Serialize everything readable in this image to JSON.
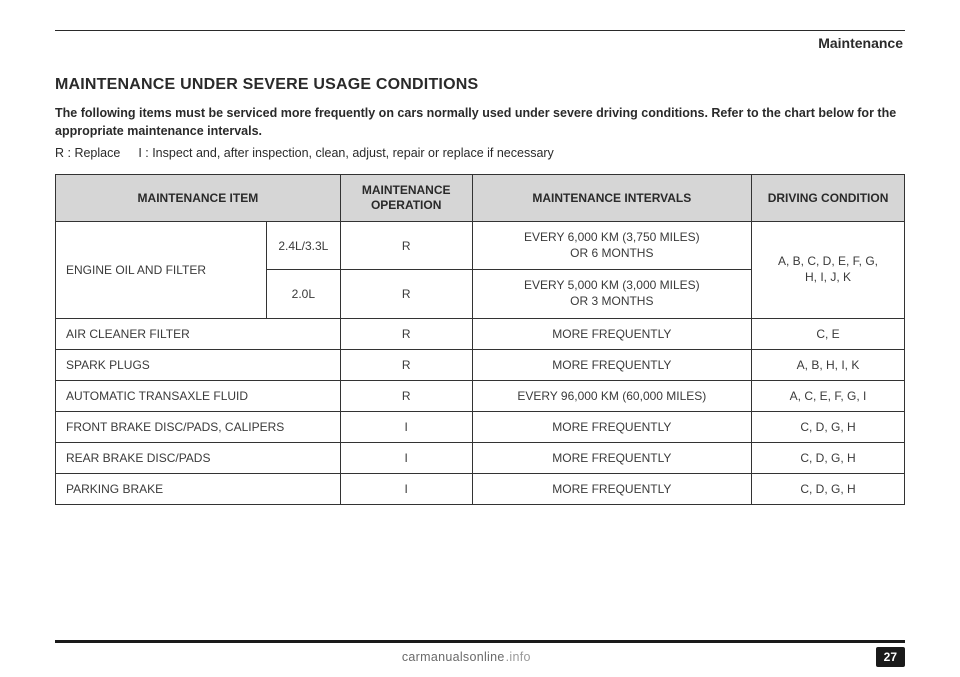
{
  "section": "Maintenance",
  "heading": "MAINTENANCE UNDER SEVERE USAGE CONDITIONS",
  "intro": "The following items must be serviced more frequently on cars normally used under severe driving conditions. Refer to the chart below for the appropriate maintenance intervals.",
  "legend_r": "R : Replace",
  "legend_i": "I : Inspect and, after inspection, clean, adjust, repair or replace if necessary",
  "table": {
    "headers": {
      "item": "MAINTENANCE ITEM",
      "operation": "MAINTENANCE OPERATION",
      "intervals": "MAINTENANCE INTERVALS",
      "condition": "DRIVING CONDITION"
    },
    "engine": {
      "label": "ENGINE OIL AND FILTER",
      "v1": "2.4L/3.3L",
      "v2": "2.0L",
      "op1": "R",
      "op2": "R",
      "int1a": "EVERY 6,000 KM (3,750 MILES)",
      "int1b": "OR 6 MONTHS",
      "int2a": "EVERY 5,000 KM (3,000 MILES)",
      "int2b": "OR 3 MONTHS",
      "cond_a": "A, B, C, D, E, F, G,",
      "cond_b": "H, I, J, K"
    },
    "rows": [
      {
        "item": "AIR CLEANER FILTER",
        "op": "R",
        "interval": "MORE FREQUENTLY",
        "cond": "C, E"
      },
      {
        "item": "SPARK PLUGS",
        "op": "R",
        "interval": "MORE FREQUENTLY",
        "cond": "A, B, H, I, K"
      },
      {
        "item": "AUTOMATIC TRANSAXLE FLUID",
        "op": "R",
        "interval": "EVERY 96,000 KM (60,000 MILES)",
        "cond": "A, C, E, F, G, I"
      },
      {
        "item": "FRONT BRAKE DISC/PADS, CALIPERS",
        "op": "I",
        "interval": "MORE FREQUENTLY",
        "cond": "C, D, G, H"
      },
      {
        "item": "REAR BRAKE DISC/PADS",
        "op": "I",
        "interval": "MORE FREQUENTLY",
        "cond": "C, D, G, H"
      },
      {
        "item": "PARKING BRAKE",
        "op": "I",
        "interval": "MORE FREQUENTLY",
        "cond": "C, D, G, H"
      }
    ]
  },
  "page_number": "27",
  "watermark_main": "carmanualsonline",
  "watermark_suffix": ".info"
}
